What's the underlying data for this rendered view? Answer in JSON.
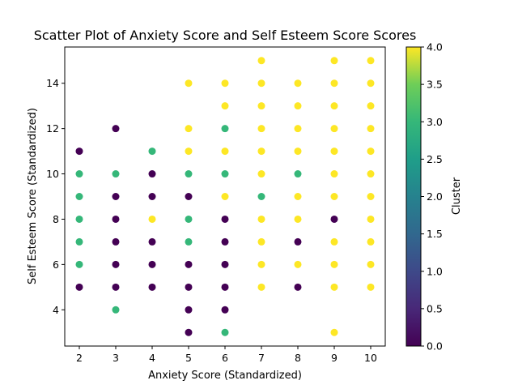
{
  "chart_data": {
    "type": "scatter",
    "title": "Scatter Plot of Anxiety Score and Self Esteem Score Scores",
    "xlabel": "Anxiety Score (Standardized)",
    "ylabel": "Self Esteem Score (Standardized)",
    "xlim": [
      1.6,
      10.4
    ],
    "ylim": [
      2.4,
      15.6
    ],
    "xticks": [
      2,
      3,
      4,
      5,
      6,
      7,
      8,
      9,
      10
    ],
    "yticks": [
      4,
      6,
      8,
      10,
      12,
      14
    ],
    "grid": false,
    "colorbar": {
      "label": "Cluster",
      "range": [
        0.0,
        4.0
      ],
      "ticks": [
        "0.0",
        "0.5",
        "1.0",
        "1.5",
        "2.0",
        "2.5",
        "3.0",
        "3.5",
        "4.0"
      ],
      "colormap": "viridis"
    },
    "points": [
      {
        "x": 2,
        "y": 11,
        "c": 0
      },
      {
        "x": 2,
        "y": 10,
        "c": 3
      },
      {
        "x": 2,
        "y": 9,
        "c": 3
      },
      {
        "x": 2,
        "y": 8,
        "c": 3
      },
      {
        "x": 2,
        "y": 7,
        "c": 3
      },
      {
        "x": 2,
        "y": 6,
        "c": 3
      },
      {
        "x": 2,
        "y": 5,
        "c": 0
      },
      {
        "x": 3,
        "y": 12,
        "c": 0
      },
      {
        "x": 3,
        "y": 10,
        "c": 3
      },
      {
        "x": 3,
        "y": 9,
        "c": 0
      },
      {
        "x": 3,
        "y": 8,
        "c": 0
      },
      {
        "x": 3,
        "y": 7,
        "c": 0
      },
      {
        "x": 3,
        "y": 6,
        "c": 0
      },
      {
        "x": 3,
        "y": 5,
        "c": 0
      },
      {
        "x": 3,
        "y": 4,
        "c": 3
      },
      {
        "x": 4,
        "y": 11,
        "c": 3
      },
      {
        "x": 4,
        "y": 10,
        "c": 0
      },
      {
        "x": 4,
        "y": 9,
        "c": 0
      },
      {
        "x": 4,
        "y": 8,
        "c": 4
      },
      {
        "x": 4,
        "y": 7,
        "c": 0
      },
      {
        "x": 4,
        "y": 6,
        "c": 0
      },
      {
        "x": 4,
        "y": 5,
        "c": 0
      },
      {
        "x": 5,
        "y": 14,
        "c": 4
      },
      {
        "x": 5,
        "y": 12,
        "c": 4
      },
      {
        "x": 5,
        "y": 11,
        "c": 4
      },
      {
        "x": 5,
        "y": 10,
        "c": 3
      },
      {
        "x": 5,
        "y": 9,
        "c": 0
      },
      {
        "x": 5,
        "y": 8,
        "c": 3
      },
      {
        "x": 5,
        "y": 7,
        "c": 3
      },
      {
        "x": 5,
        "y": 6,
        "c": 0
      },
      {
        "x": 5,
        "y": 5,
        "c": 0
      },
      {
        "x": 5,
        "y": 4,
        "c": 0
      },
      {
        "x": 5,
        "y": 3,
        "c": 0
      },
      {
        "x": 6,
        "y": 14,
        "c": 4
      },
      {
        "x": 6,
        "y": 13,
        "c": 4
      },
      {
        "x": 6,
        "y": 12,
        "c": 3
      },
      {
        "x": 6,
        "y": 11,
        "c": 4
      },
      {
        "x": 6,
        "y": 10,
        "c": 3
      },
      {
        "x": 6,
        "y": 9,
        "c": 4
      },
      {
        "x": 6,
        "y": 8,
        "c": 0
      },
      {
        "x": 6,
        "y": 7,
        "c": 0
      },
      {
        "x": 6,
        "y": 6,
        "c": 0
      },
      {
        "x": 6,
        "y": 5,
        "c": 0
      },
      {
        "x": 6,
        "y": 4,
        "c": 0
      },
      {
        "x": 6,
        "y": 3,
        "c": 3
      },
      {
        "x": 7,
        "y": 15,
        "c": 4
      },
      {
        "x": 7,
        "y": 14,
        "c": 4
      },
      {
        "x": 7,
        "y": 13,
        "c": 4
      },
      {
        "x": 7,
        "y": 12,
        "c": 4
      },
      {
        "x": 7,
        "y": 11,
        "c": 4
      },
      {
        "x": 7,
        "y": 10,
        "c": 4
      },
      {
        "x": 7,
        "y": 9,
        "c": 3
      },
      {
        "x": 7,
        "y": 8,
        "c": 4
      },
      {
        "x": 7,
        "y": 7,
        "c": 4
      },
      {
        "x": 7,
        "y": 6,
        "c": 4
      },
      {
        "x": 7,
        "y": 5,
        "c": 4
      },
      {
        "x": 8,
        "y": 14,
        "c": 4
      },
      {
        "x": 8,
        "y": 13,
        "c": 4
      },
      {
        "x": 8,
        "y": 12,
        "c": 4
      },
      {
        "x": 8,
        "y": 11,
        "c": 4
      },
      {
        "x": 8,
        "y": 10,
        "c": 3
      },
      {
        "x": 8,
        "y": 9,
        "c": 4
      },
      {
        "x": 8,
        "y": 8,
        "c": 4
      },
      {
        "x": 8,
        "y": 7,
        "c": 0
      },
      {
        "x": 8,
        "y": 6,
        "c": 4
      },
      {
        "x": 8,
        "y": 5,
        "c": 0
      },
      {
        "x": 9,
        "y": 15,
        "c": 4
      },
      {
        "x": 9,
        "y": 14,
        "c": 4
      },
      {
        "x": 9,
        "y": 13,
        "c": 4
      },
      {
        "x": 9,
        "y": 12,
        "c": 4
      },
      {
        "x": 9,
        "y": 11,
        "c": 4
      },
      {
        "x": 9,
        "y": 10,
        "c": 4
      },
      {
        "x": 9,
        "y": 9,
        "c": 4
      },
      {
        "x": 9,
        "y": 8,
        "c": 0
      },
      {
        "x": 9,
        "y": 7,
        "c": 4
      },
      {
        "x": 9,
        "y": 6,
        "c": 4
      },
      {
        "x": 9,
        "y": 5,
        "c": 4
      },
      {
        "x": 9,
        "y": 3,
        "c": 4
      },
      {
        "x": 10,
        "y": 15,
        "c": 4
      },
      {
        "x": 10,
        "y": 14,
        "c": 4
      },
      {
        "x": 10,
        "y": 13,
        "c": 4
      },
      {
        "x": 10,
        "y": 12,
        "c": 4
      },
      {
        "x": 10,
        "y": 11,
        "c": 4
      },
      {
        "x": 10,
        "y": 10,
        "c": 4
      },
      {
        "x": 10,
        "y": 9,
        "c": 4
      },
      {
        "x": 10,
        "y": 8,
        "c": 4
      },
      {
        "x": 10,
        "y": 7,
        "c": 4
      },
      {
        "x": 10,
        "y": 6,
        "c": 4
      },
      {
        "x": 10,
        "y": 5,
        "c": 4
      }
    ]
  }
}
